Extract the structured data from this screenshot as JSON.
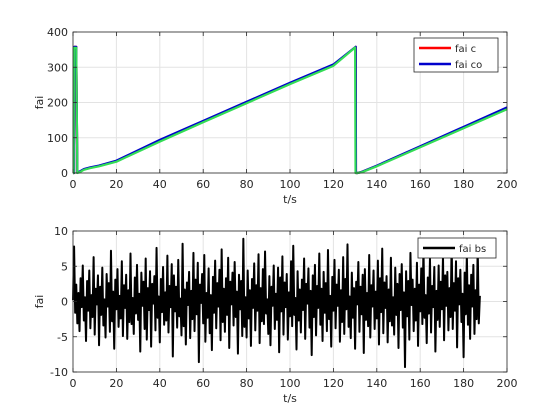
{
  "figure": {
    "background": "#ffffff"
  },
  "chart_data": [
    {
      "type": "line",
      "xlabel": "t/s",
      "ylabel": "fai",
      "xlim": [
        0,
        200
      ],
      "ylim": [
        0,
        400
      ],
      "xticks": [
        0,
        20,
        40,
        60,
        80,
        100,
        120,
        140,
        160,
        180,
        200
      ],
      "yticks": [
        0,
        100,
        200,
        300,
        400
      ],
      "grid": true,
      "legend": {
        "placement": "top-right"
      },
      "series": [
        {
          "name": "fai c",
          "color": "#ff0000",
          "x": [
            0,
            0.5,
            0.6,
            1.5,
            2,
            3,
            5,
            8,
            12,
            20,
            40,
            60,
            80,
            100,
            120,
            130.3,
            130.4,
            131,
            133,
            140,
            160,
            180,
            200
          ],
          "y": [
            0,
            0,
            358,
            358,
            2,
            3,
            10,
            15,
            20,
            33,
            91,
            146,
            200,
            254,
            306,
            358,
            0,
            0,
            3,
            20,
            74,
            128,
            182
          ]
        },
        {
          "name": "fai co",
          "color": "#0000cc",
          "x": [
            0,
            0.5,
            0.6,
            1.5,
            2,
            3,
            5,
            8,
            12,
            20,
            40,
            60,
            80,
            100,
            120,
            130.3,
            130.4,
            131,
            133,
            140,
            160,
            180,
            200
          ],
          "y": [
            0,
            0,
            358,
            358,
            2,
            4,
            11,
            16,
            21,
            35,
            94,
            148,
            202,
            256,
            308,
            358,
            0,
            0,
            3,
            21,
            76,
            131,
            186
          ]
        },
        {
          "color": "#33dd55",
          "x": [
            0,
            0.3,
            0.4,
            1.5,
            2,
            3,
            5,
            8,
            12,
            20,
            40,
            60,
            80,
            100,
            120,
            130.0,
            130.2,
            131,
            133,
            140,
            160,
            180,
            200
          ],
          "y": [
            0,
            0,
            355,
            355,
            0,
            2,
            9,
            14,
            19,
            32,
            89,
            144,
            198,
            252,
            304,
            356,
            0,
            0,
            2,
            19,
            73,
            127,
            181
          ]
        }
      ]
    },
    {
      "type": "line",
      "xlabel": "t/s",
      "ylabel": "fai",
      "xlim": [
        0,
        200
      ],
      "ylim": [
        -10,
        10
      ],
      "xticks": [
        0,
        20,
        40,
        60,
        80,
        100,
        120,
        140,
        160,
        180,
        200
      ],
      "yticks": [
        -10,
        -5,
        0,
        5,
        10
      ],
      "grid": true,
      "legend": {
        "placement": "top-right"
      },
      "series": [
        {
          "name": "fai bs",
          "color": "#000000",
          "x_start": 0,
          "x_step": 0.5,
          "y": [
            0.2,
            7.8,
            -1.6,
            2.4,
            -3.1,
            1.2,
            -4.2,
            3.3,
            -0.8,
            5.1,
            -2.7,
            0.6,
            -5.6,
            2.9,
            -1.3,
            4.4,
            -3.8,
            0.9,
            -2.2,
            6.3,
            -4.7,
            1.8,
            -0.4,
            3.7,
            -6.2,
            2.1,
            -1.9,
            4.8,
            -3.4,
            0.3,
            -5.1,
            3.9,
            -0.7,
            2.6,
            -4.3,
            7.2,
            -2.8,
            1.4,
            -6.7,
            3.1,
            -1.1,
            4.6,
            -3.6,
            0.8,
            -2.4,
            5.7,
            -4.9,
            2.3,
            -0.9,
            3.8,
            -5.3,
            1.6,
            -2.9,
            6.8,
            -3.2,
            0.5,
            -4.6,
            3.4,
            -1.7,
            5.2,
            -2.6,
            1.1,
            -7.1,
            4.1,
            -0.6,
            2.8,
            -3.9,
            6.1,
            -5.4,
            1.9,
            -1.2,
            4.3,
            -6.4,
            2.5,
            -0.3,
            3.6,
            -4.1,
            7.6,
            -2.3,
            0.7,
            -5.8,
            3.2,
            -1.5,
            4.9,
            -3.3,
            1.3,
            -2.7,
            6.5,
            -4.4,
            2.2,
            -0.8,
            5.3,
            -7.8,
            3.7,
            -1.4,
            2.1,
            -3.7,
            5.9,
            -2.1,
            0.4,
            -4.8,
            8.2,
            -3.5,
            1.7,
            -6.1,
            2.7,
            -0.5,
            4.2,
            -5.2,
            1.5,
            -2.5,
            6.9,
            -4.2,
            3.1,
            -1.8,
            5.5,
            -8.6,
            2.4,
            -0.2,
            3.9,
            -3.1,
            6.6,
            -5.7,
            1.2,
            -2.3,
            4.7,
            -4.5,
            0.9,
            -6.9,
            3.5,
            -1.6,
            5.8,
            -3.8,
            2.6,
            -0.7,
            4.5,
            -5.5,
            7.4,
            -2.9,
            1.8,
            -4.3,
            3.3,
            -1.9,
            6.2,
            -6.6,
            2.8,
            -0.4,
            4.1,
            -3.4,
            5.6,
            -2.2,
            1.4,
            -7.4,
            3.8,
            -1.1,
            2.9,
            -4.9,
            8.9,
            -3.6,
            0.6,
            -5.1,
            4.4,
            -2.4,
            1.6,
            -6.3,
            3.2,
            -0.9,
            5.4,
            -4.1,
            2.3,
            -1.3,
            6.7,
            -5.9,
            1.9,
            -2.8,
            4.6,
            -3.2,
            7.1,
            -1.7,
            0.3,
            -4.6,
            3.6,
            -6.2,
            2.1,
            -0.6,
            5.1,
            -3.9,
            1.1,
            -2.6,
            4.8,
            -7.2,
            3.4,
            -1.4,
            6.4,
            -4.7,
            2.7,
            -0.8,
            3.9,
            -5.4,
            1.3,
            -2.1,
            5.7,
            -3.5,
            7.9,
            -1.9,
            0.5,
            -6.8,
            4.3,
            -2.7,
            1.7,
            -4.4,
            3.1,
            -1.2,
            6.1,
            -5.3,
            2.5,
            -0.3,
            4.7,
            -3.7,
            1.5,
            -7.6,
            3.7,
            -2.2,
            5.2,
            -4.8,
            2.2,
            -0.9,
            6.8,
            -3.3,
            1.8,
            -5.6,
            4.2,
            -1.6,
            2.6,
            -4.2,
            7.3,
            -2.5,
            0.8,
            -6.4,
            3.5,
            -1.3,
            5.9,
            -3.8,
            2.4,
            -0.6,
            4.5,
            -5.7,
            1.6,
            -2.9,
            6.3,
            -4.6,
            3.2,
            -1.1,
            8.1,
            -3.6,
            0.7,
            -5.2,
            4.1,
            -2.3,
            1.9,
            -6.7,
            2.8,
            -0.4,
            5.6,
            -4.3,
            2.1,
            -1.8,
            3.8,
            -7.3,
            4.6,
            -2.6,
            1.2,
            -3.5,
            6.6,
            -5.1,
            2.3,
            -0.7,
            4.4,
            -3.9,
            1.4,
            -2.4,
            5.8,
            -6.1,
            3.3,
            -1.5,
            7.5,
            -4.5,
            2.7,
            -0.9,
            3.6,
            -5.8,
            1.7,
            -2.8,
            6.2,
            -3.4,
            0.6,
            -4.7,
            4.8,
            -1.9,
            2.5,
            -6.6,
            3.9,
            -1.2,
            5.3,
            -3.7,
            1.3,
            -9.3,
            4.3,
            -2.1,
            2.9,
            -5.4,
            6.9,
            -0.5,
            3.1,
            -4.2,
            1.8,
            -2.7,
            5.5,
            -6.3,
            2.4,
            -1.4,
            4.7,
            -3.2,
            7.7,
            -2.3,
            0.9,
            -5.9,
            3.4,
            -1.7,
            6.1,
            -4.4,
            2.2,
            -0.8,
            4.9,
            -7.1,
            1.5,
            -2.6,
            5.1,
            -3.6,
            2.8,
            -1.1,
            6.4,
            -5.5,
            3.7,
            -0.6,
            4.2,
            -4.1,
            1.9,
            -2.2,
            8.4,
            -3.9,
            2.6,
            -1.3,
            5.7,
            -6.5,
            3.3,
            -0.4,
            4.5,
            -2.9,
            1.1,
            -7.9,
            4.1,
            -1.8,
            6.7,
            -3.3,
            2.3,
            -5.3,
            3.8,
            -0.7,
            5.2,
            -4.6,
            1.6,
            -2.5,
            7.8,
            -3.1,
            0.8
          ]
        }
      ]
    }
  ]
}
